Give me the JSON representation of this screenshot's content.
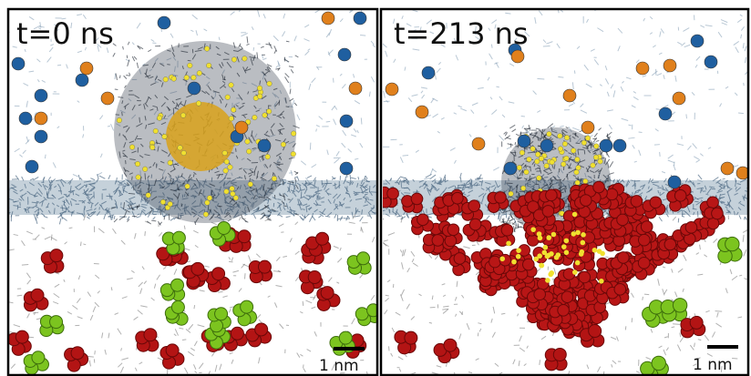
{
  "panels": [
    {
      "time_label": "t=0 ns",
      "scale_label": "1 nm"
    },
    {
      "time_label": "t=213 ns",
      "scale_label": "1 nm"
    }
  ]
}
